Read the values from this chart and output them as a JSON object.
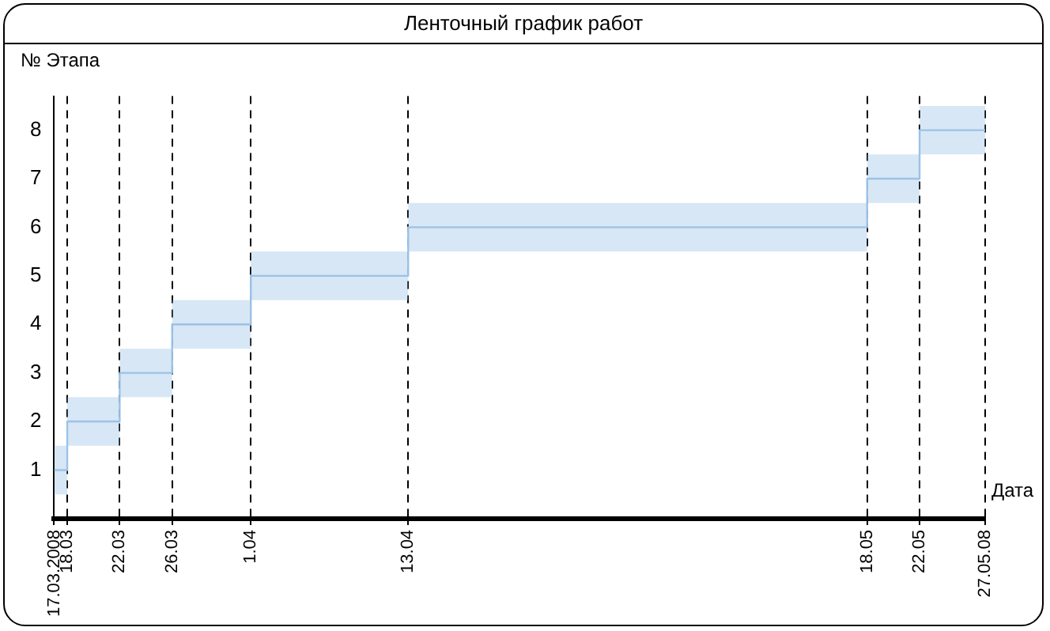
{
  "chart_data": {
    "type": "step",
    "title": "Ленточный график работ",
    "xlabel": "Дата",
    "ylabel": "№ Этапа",
    "x": [
      "2008-03-17",
      "2008-03-18",
      "2008-03-22",
      "2008-03-26",
      "2008-04-01",
      "2008-04-13",
      "2008-05-18",
      "2008-05-22",
      "2008-05-27"
    ],
    "series": [
      {
        "color": "#9cc2e6",
        "values": [
          1,
          2,
          3,
          4,
          5,
          6,
          7,
          8,
          8
        ],
        "lower": [
          0.5,
          1.5,
          2.5,
          3.5,
          4.5,
          5.5,
          6.5,
          7.5,
          7.5
        ],
        "upper": [
          1.5,
          2.5,
          3.5,
          4.5,
          5.5,
          6.5,
          7.5,
          8.5,
          8.5
        ]
      }
    ],
    "xlim": [
      "2008-03-17",
      "2008-05-27"
    ],
    "xticks": [
      {
        "value": "2008-03-17",
        "label": "17.03.2008"
      },
      {
        "value": "2008-03-18",
        "label": "18.03"
      },
      {
        "value": "2008-03-22",
        "label": "22.03"
      },
      {
        "value": "2008-03-26",
        "label": "26.03"
      },
      {
        "value": "2008-04-01",
        "label": "1.04"
      },
      {
        "value": "2008-04-13",
        "label": "13.04"
      },
      {
        "value": "2008-05-18",
        "label": "18.05"
      },
      {
        "value": "2008-05-22",
        "label": "22.05"
      },
      {
        "value": "2008-05-27",
        "label": "27.05.08"
      }
    ],
    "ylim": [
      0,
      8.7
    ],
    "yticks": [
      1,
      2,
      3,
      4,
      5,
      6,
      7,
      8
    ],
    "grid": "x",
    "line_style": "solid",
    "marker": "none",
    "legend": false
  }
}
